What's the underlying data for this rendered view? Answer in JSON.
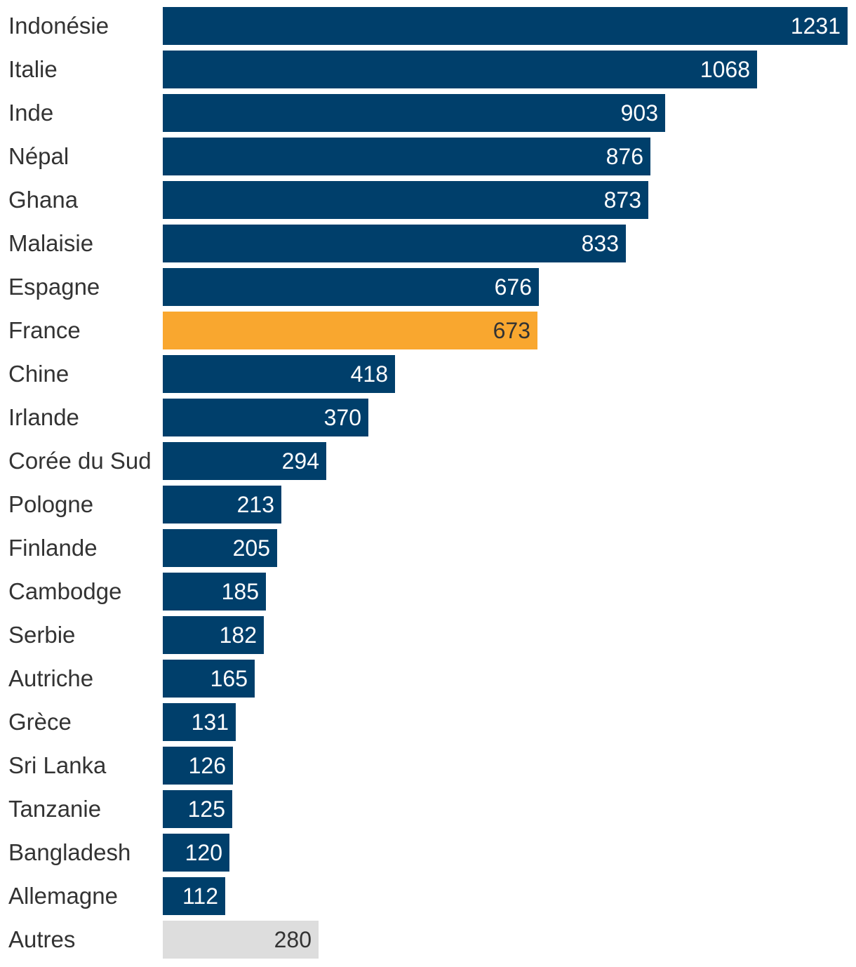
{
  "chart_data": {
    "type": "bar",
    "orientation": "horizontal",
    "title": "",
    "xlabel": "",
    "ylabel": "",
    "xlim": [
      0,
      1231
    ],
    "grid": false,
    "categories": [
      "Indonésie",
      "Italie",
      "Inde",
      "Népal",
      "Ghana",
      "Malaisie",
      "Espagne",
      "France",
      "Chine",
      "Irlande",
      "Corée du Sud",
      "Pologne",
      "Finlande",
      "Cambodge",
      "Serbie",
      "Autriche",
      "Grèce",
      "Sri Lanka",
      "Tanzanie",
      "Bangladesh",
      "Allemagne",
      "Autres"
    ],
    "values": [
      1231,
      1068,
      903,
      876,
      873,
      833,
      676,
      673,
      418,
      370,
      294,
      213,
      205,
      185,
      182,
      165,
      131,
      126,
      125,
      120,
      112,
      280
    ],
    "colors": {
      "default": "#003f6b",
      "highlight": "#f9a72f",
      "other": "#dddddd",
      "label_on_dark": "#ffffff",
      "label_on_light": "#333333"
    },
    "highlight": "France",
    "other": "Autres"
  }
}
